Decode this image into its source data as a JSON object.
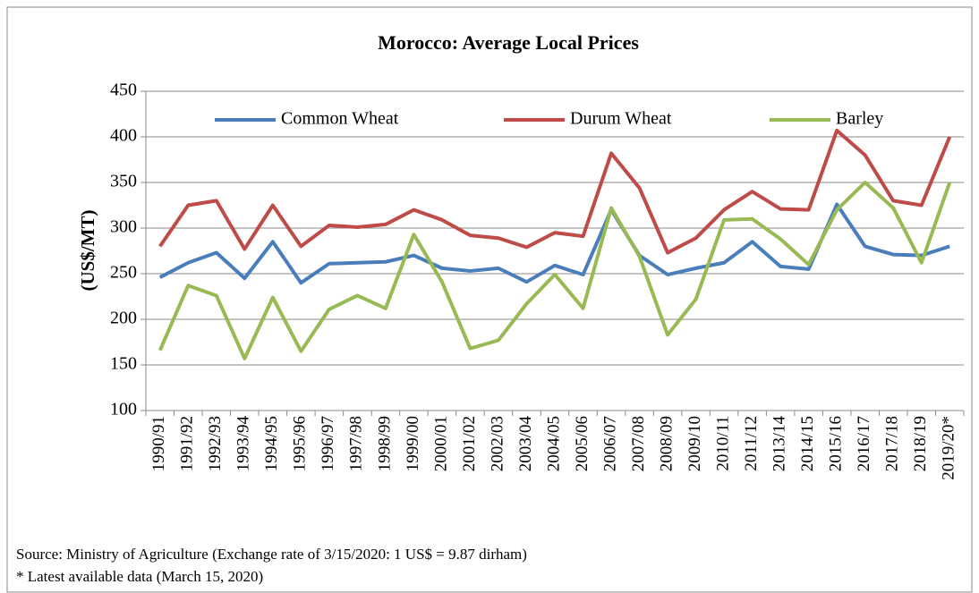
{
  "chart_data": {
    "type": "line",
    "title": "Morocco: Average Local Prices",
    "y_label": "(US$/MT)",
    "source": "Source: Ministry of Agriculture (Exchange rate of 3/15/2020: 1 US$ = 9.87 dirham)",
    "note": "* Latest available data (March 15, 2020)",
    "categories": [
      "1990/91",
      "1991/92",
      "1992/93",
      "1993/94",
      "1994/95",
      "1995/96",
      "1996/97",
      "1997/98",
      "1998/99",
      "1999/00",
      "2000/01",
      "2001/02",
      "2002/03",
      "2003/04",
      "2004/05",
      "2005/06",
      "2006/07",
      "2007/08",
      "2008/09",
      "2009/10",
      "2010/11",
      "2011/12",
      "2013/14",
      "2014/15",
      "2015/16",
      "2016/17",
      "2017/18",
      "2018/19",
      "2019/20*"
    ],
    "series": [
      {
        "name": "Common Wheat",
        "color": "#4a7ebb",
        "values": [
          246,
          262,
          273,
          245,
          285,
          240,
          261,
          262,
          263,
          270,
          256,
          253,
          256,
          241,
          259,
          249,
          320,
          270,
          249,
          256,
          262,
          285,
          258,
          255,
          326,
          280,
          271,
          270,
          280
        ]
      },
      {
        "name": "Durum Wheat",
        "color": "#be4b48",
        "values": [
          280,
          325,
          330,
          277,
          325,
          280,
          303,
          301,
          304,
          320,
          309,
          292,
          289,
          279,
          295,
          291,
          382,
          344,
          273,
          289,
          320,
          340,
          321,
          320,
          407,
          380,
          330,
          325,
          400
        ]
      },
      {
        "name": "Barley",
        "color": "#98b954",
        "values": [
          166,
          237,
          226,
          157,
          224,
          165,
          211,
          226,
          212,
          293,
          241,
          168,
          177,
          217,
          249,
          212,
          322,
          269,
          183,
          222,
          309,
          310,
          288,
          260,
          320,
          350,
          322,
          262,
          350
        ]
      }
    ],
    "ylim": [
      100,
      450
    ],
    "yticks": [
      100,
      150,
      200,
      250,
      300,
      350,
      400,
      450
    ],
    "grid": true,
    "legend": "top"
  }
}
